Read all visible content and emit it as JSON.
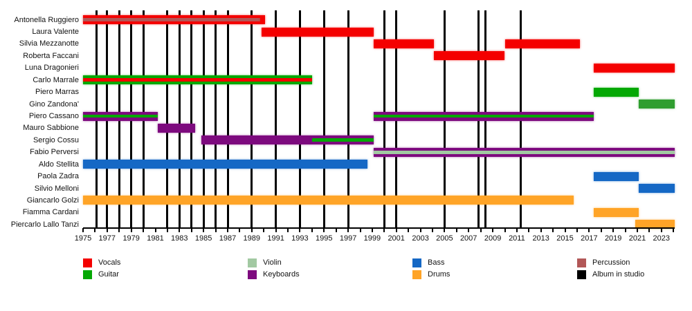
{
  "chart_data": {
    "type": "timeline",
    "title": "",
    "x_axis": {
      "min": 1975,
      "max": 2024.1,
      "minor_tick_step": 1,
      "tick_labels": [
        1975,
        1977,
        1979,
        1981,
        1983,
        1985,
        1987,
        1989,
        1991,
        1993,
        1995,
        1997,
        1999,
        2001,
        2003,
        2005,
        2007,
        2009,
        2011,
        2013,
        2015,
        2017,
        2019,
        2021,
        2023
      ]
    },
    "roles": {
      "Vocals": "#f40000",
      "Guitar": "#04a804",
      "Violin": "#a2c9a2",
      "Keyboards": "#7d0a7e",
      "Bass": "#1568c5",
      "Drums": "#ffa427",
      "Percussion": "#b25757",
      "Album in studio": "#000000"
    },
    "legend_columns": [
      [
        "Vocals",
        "Guitar"
      ],
      [
        "Violin",
        "Keyboards"
      ],
      [
        "Bass",
        "Drums"
      ],
      [
        "Percussion",
        "Album in studio"
      ]
    ],
    "albums_in_studio": [
      1976.1,
      1977,
      1978,
      1979,
      1980,
      1982,
      1983,
      1984,
      1985,
      1986,
      1987,
      1989,
      1991,
      1993,
      1995,
      1997,
      2000,
      2001,
      2005,
      2007.8,
      2008.4,
      2011.3
    ],
    "members": [
      {
        "name": "Antonella Ruggiero",
        "segments": [
          {
            "start": 1975,
            "end": 1989.7,
            "role": "Vocals",
            "stripe": "Percussion"
          },
          {
            "start": 1989.7,
            "end": 1990.1,
            "role": "Vocals"
          }
        ]
      },
      {
        "name": "Laura Valente",
        "segments": [
          {
            "start": 1989.8,
            "end": 1999.1,
            "role": "Vocals"
          }
        ]
      },
      {
        "name": "Silvia Mezzanotte",
        "segments": [
          {
            "start": 1999.1,
            "end": 2004.1,
            "role": "Vocals"
          },
          {
            "start": 2010,
            "end": 2016.2,
            "role": "Vocals"
          }
        ]
      },
      {
        "name": "Roberta Faccani",
        "segments": [
          {
            "start": 2004.1,
            "end": 2010,
            "role": "Vocals"
          }
        ]
      },
      {
        "name": "Luna Dragonieri",
        "segments": [
          {
            "start": 2017.4,
            "end": 2024.1,
            "role": "Vocals"
          }
        ]
      },
      {
        "name": "Carlo Marrale",
        "segments": [
          {
            "start": 1975,
            "end": 1994,
            "role": "Guitar",
            "stripe": "Vocals"
          }
        ]
      },
      {
        "name": "Piero Marras",
        "segments": [
          {
            "start": 2017.4,
            "end": 2021.1,
            "role": "Guitar"
          }
        ]
      },
      {
        "name": "Gino Zandona'",
        "segments": [
          {
            "start": 2021.1,
            "end": 2024.1,
            "role": "Guitar",
            "color": "#2f9e2f"
          }
        ]
      },
      {
        "name": "Piero Cassano",
        "segments": [
          {
            "start": 1975,
            "end": 1981.2,
            "role": "Keyboards",
            "stripe": "Guitar"
          },
          {
            "start": 1999.1,
            "end": 2017.4,
            "role": "Keyboards",
            "stripe": "Guitar"
          }
        ]
      },
      {
        "name": "Mauro Sabbione",
        "segments": [
          {
            "start": 1981.2,
            "end": 1984.3,
            "role": "Keyboards"
          }
        ]
      },
      {
        "name": "Sergio Cossu",
        "segments": [
          {
            "start": 1984.8,
            "end": 1994,
            "role": "Keyboards"
          },
          {
            "start": 1994,
            "end": 1999.1,
            "role": "Keyboards",
            "stripe": "Guitar"
          }
        ]
      },
      {
        "name": "Fabio Perversi",
        "segments": [
          {
            "start": 1999.1,
            "end": 2024.1,
            "role": "Keyboards",
            "stripe": "Violin"
          }
        ]
      },
      {
        "name": "Aldo Stellita",
        "segments": [
          {
            "start": 1975,
            "end": 1998.6,
            "role": "Bass"
          }
        ]
      },
      {
        "name": "Paola Zadra",
        "segments": [
          {
            "start": 2017.4,
            "end": 2021.1,
            "role": "Bass"
          }
        ]
      },
      {
        "name": "Silvio Melloni",
        "segments": [
          {
            "start": 2021.1,
            "end": 2024.1,
            "role": "Bass"
          }
        ]
      },
      {
        "name": "Giancarlo Golzi",
        "segments": [
          {
            "start": 1975,
            "end": 2015.7,
            "role": "Drums"
          }
        ]
      },
      {
        "name": "Fiamma Cardani",
        "segments": [
          {
            "start": 2017.4,
            "end": 2021.1,
            "role": "Drums"
          }
        ]
      },
      {
        "name": "Piercarlo Lallo Tanzi",
        "segments": [
          {
            "start": 2020.8,
            "end": 2024.1,
            "role": "Drums"
          }
        ]
      }
    ]
  }
}
